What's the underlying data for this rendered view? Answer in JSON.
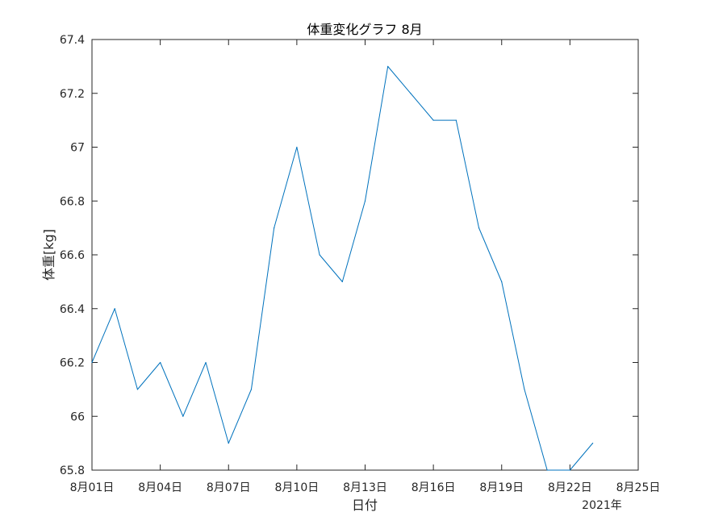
{
  "chart_data": {
    "type": "line",
    "title": "体重変化グラフ 8月",
    "xlabel": "日付",
    "ylabel": "体重[kg]",
    "year_label": "2021年",
    "x_ticks": [
      "8月01日",
      "8月04日",
      "8月07日",
      "8月10日",
      "8月13日",
      "8月16日",
      "8月19日",
      "8月22日",
      "8月25日"
    ],
    "y_ticks": [
      "65.8",
      "66",
      "66.2",
      "66.4",
      "66.6",
      "66.8",
      "67",
      "67.2",
      "67.4"
    ],
    "ylim": [
      65.8,
      67.4
    ],
    "xlim": [
      "2021-08-01",
      "2021-08-25"
    ],
    "grid": false,
    "line_color": "#0072bd",
    "series": [
      {
        "x": [
          "2021-08-01",
          "2021-08-02",
          "2021-08-03",
          "2021-08-04",
          "2021-08-05",
          "2021-08-06",
          "2021-08-07",
          "2021-08-08",
          "2021-08-09",
          "2021-08-10",
          "2021-08-11",
          "2021-08-12",
          "2021-08-13",
          "2021-08-14",
          "2021-08-15",
          "2021-08-16",
          "2021-08-17",
          "2021-08-18",
          "2021-08-19",
          "2021-08-20",
          "2021-08-21",
          "2021-08-22",
          "2021-08-23"
        ],
        "values": [
          66.2,
          66.4,
          66.1,
          66.2,
          66.0,
          66.2,
          65.9,
          66.1,
          66.7,
          67.0,
          66.6,
          66.5,
          66.8,
          67.3,
          67.2,
          67.1,
          67.1,
          66.7,
          66.5,
          66.1,
          65.8,
          65.8,
          65.9
        ]
      }
    ]
  }
}
